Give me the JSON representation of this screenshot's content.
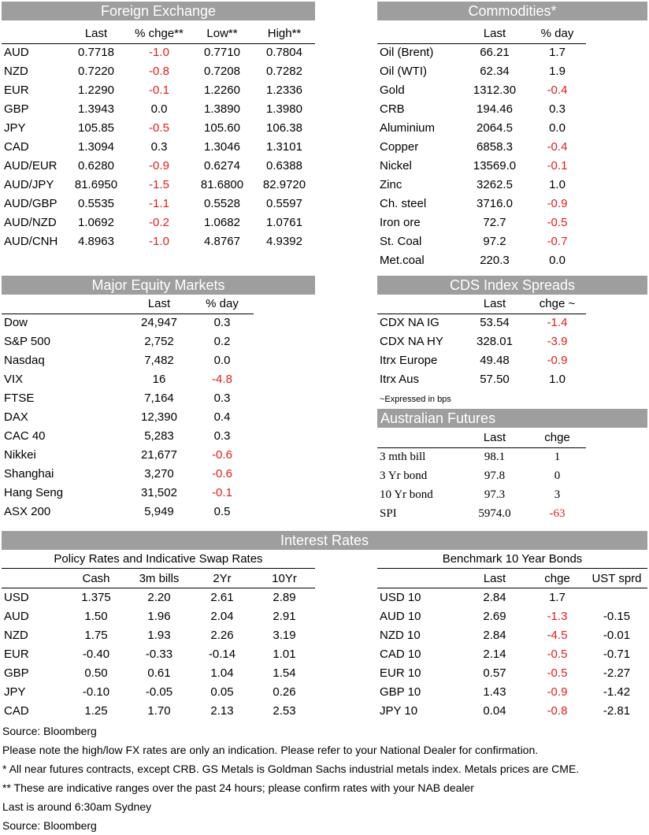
{
  "fx": {
    "title": "Foreign Exchange",
    "cols": [
      "",
      "Last",
      "% chge**",
      "Low**",
      "High**"
    ],
    "rows": [
      {
        "name": "AUD",
        "last": "0.7718",
        "chg": "-1.0",
        "low": "0.7710",
        "high": "0.7804"
      },
      {
        "name": "NZD",
        "last": "0.7220",
        "chg": "-0.8",
        "low": "0.7208",
        "high": "0.7282"
      },
      {
        "name": "EUR",
        "last": "1.2290",
        "chg": "-0.1",
        "low": "1.2260",
        "high": "1.2336"
      },
      {
        "name": "GBP",
        "last": "1.3943",
        "chg": "0.0",
        "low": "1.3890",
        "high": "1.3980"
      },
      {
        "name": "JPY",
        "last": "105.85",
        "chg": "-0.5",
        "low": "105.60",
        "high": "106.38"
      },
      {
        "name": "CAD",
        "last": "1.3094",
        "chg": "0.3",
        "low": "1.3046",
        "high": "1.3101"
      },
      {
        "name": "AUD/EUR",
        "last": "0.6280",
        "chg": "-0.9",
        "low": "0.6274",
        "high": "0.6388"
      },
      {
        "name": "AUD/JPY",
        "last": "81.6950",
        "chg": "-1.5",
        "low": "81.6800",
        "high": "82.9720"
      },
      {
        "name": "AUD/GBP",
        "last": "0.5535",
        "chg": "-1.1",
        "low": "0.5528",
        "high": "0.5597"
      },
      {
        "name": "AUD/NZD",
        "last": "1.0692",
        "chg": "-0.2",
        "low": "1.0682",
        "high": "1.0761"
      },
      {
        "name": "AUD/CNH",
        "last": "4.8963",
        "chg": "-1.0",
        "low": "4.8767",
        "high": "4.9392"
      }
    ]
  },
  "commodities": {
    "title": "Commodities*",
    "cols": [
      "",
      "Last",
      "% day"
    ],
    "rows": [
      {
        "name": "Oil (Brent)",
        "last": "66.21",
        "day": "1.7"
      },
      {
        "name": "Oil (WTI)",
        "last": "62.34",
        "day": "1.9"
      },
      {
        "name": "Gold",
        "last": "1312.30",
        "day": "-0.4"
      },
      {
        "name": "CRB",
        "last": "194.46",
        "day": "0.3"
      },
      {
        "name": "Aluminium",
        "last": "2064.5",
        "day": "0.0"
      },
      {
        "name": "Copper",
        "last": "6858.3",
        "day": "-0.4"
      },
      {
        "name": "Nickel",
        "last": "13569.0",
        "day": "-0.1"
      },
      {
        "name": "Zinc",
        "last": "3262.5",
        "day": "1.0"
      },
      {
        "name": "Ch. steel",
        "last": "3716.0",
        "day": "-0.9"
      },
      {
        "name": "Iron ore",
        "last": "72.7",
        "day": "-0.5"
      },
      {
        "name": "St. Coal",
        "last": "97.2",
        "day": "-0.7"
      },
      {
        "name": "Met.coal",
        "last": "220.3",
        "day": "0.0"
      }
    ]
  },
  "equity": {
    "title": "Major Equity Markets",
    "cols": [
      "",
      "Last",
      "% day"
    ],
    "rows": [
      {
        "name": "Dow",
        "last": "24,947",
        "day": "0.3"
      },
      {
        "name": "S&P 500",
        "last": "2,752",
        "day": "0.2"
      },
      {
        "name": "Nasdaq",
        "last": "7,482",
        "day": "0.0"
      },
      {
        "name": "VIX",
        "last": "16",
        "day": "-4.8"
      },
      {
        "name": "FTSE",
        "last": "7,164",
        "day": "0.3"
      },
      {
        "name": "DAX",
        "last": "12,390",
        "day": "0.4"
      },
      {
        "name": "CAC 40",
        "last": "5,283",
        "day": "0.3"
      },
      {
        "name": "Nikkei",
        "last": "21,677",
        "day": "-0.6"
      },
      {
        "name": "Shanghai",
        "last": "3,270",
        "day": "-0.6"
      },
      {
        "name": "Hang Seng",
        "last": "31,502",
        "day": "-0.1"
      },
      {
        "name": "ASX 200",
        "last": "5,949",
        "day": "0.5"
      }
    ]
  },
  "cds": {
    "title": "CDS Index Spreads",
    "cols": [
      "",
      "Last",
      "chge ~"
    ],
    "rows": [
      {
        "name": "CDX NA IG",
        "last": "53.54",
        "chg": "-1.4"
      },
      {
        "name": "CDX NA HY",
        "last": "328.01",
        "chg": "-3.9"
      },
      {
        "name": "Itrx Europe",
        "last": "49.48",
        "chg": "-0.9"
      },
      {
        "name": "Itrx Aus",
        "last": "57.50",
        "chg": "1.0"
      }
    ],
    "note": "~Expressed in bps"
  },
  "futures": {
    "title": "Australian Futures",
    "cols": [
      "",
      "Last",
      "chge"
    ],
    "rows": [
      {
        "name": "3 mth bill",
        "last": "98.1",
        "chg": "1"
      },
      {
        "name": "3 Yr bond",
        "last": "97.8",
        "chg": "0"
      },
      {
        "name": "10 Yr bond",
        "last": "97.3",
        "chg": "3"
      },
      {
        "name": "SPI",
        "last": "5974.0",
        "chg": "-63"
      }
    ]
  },
  "interest": {
    "title": "Interest Rates",
    "policy": {
      "subtitle": "Policy Rates and Indicative Swap Rates",
      "cols": [
        "",
        "Cash",
        "3m bills",
        "2Yr",
        "10Yr"
      ],
      "rows": [
        {
          "name": "USD",
          "cash": "1.375",
          "bills": "2.20",
          "y2": "2.61",
          "y10": "2.89"
        },
        {
          "name": "AUD",
          "cash": "1.50",
          "bills": "1.96",
          "y2": "2.04",
          "y10": "2.91"
        },
        {
          "name": "NZD",
          "cash": "1.75",
          "bills": "1.93",
          "y2": "2.26",
          "y10": "3.19"
        },
        {
          "name": "EUR",
          "cash": "-0.40",
          "bills": "-0.33",
          "y2": "-0.14",
          "y10": "1.01"
        },
        {
          "name": "GBP",
          "cash": "0.50",
          "bills": "0.61",
          "y2": "1.04",
          "y10": "1.54"
        },
        {
          "name": "JPY",
          "cash": "-0.10",
          "bills": "-0.05",
          "y2": "0.05",
          "y10": "0.26"
        },
        {
          "name": "CAD",
          "cash": "1.25",
          "bills": "1.70",
          "y2": "2.13",
          "y10": "2.53"
        }
      ]
    },
    "bonds": {
      "subtitle": "Benchmark 10 Year Bonds",
      "cols": [
        "",
        "Last",
        "chge",
        "UST sprd"
      ],
      "rows": [
        {
          "name": "USD 10",
          "last": "2.84",
          "chg": "1.7",
          "sprd": ""
        },
        {
          "name": "AUD 10",
          "last": "2.69",
          "chg": "-1.3",
          "sprd": "-0.15"
        },
        {
          "name": "NZD 10",
          "last": "2.84",
          "chg": "-4.5",
          "sprd": "-0.01"
        },
        {
          "name": "CAD 10",
          "last": "2.14",
          "chg": "-0.5",
          "sprd": "-0.71"
        },
        {
          "name": "EUR 10",
          "last": "0.57",
          "chg": "-0.5",
          "sprd": "-2.27"
        },
        {
          "name": "GBP 10",
          "last": "1.43",
          "chg": "-0.9",
          "sprd": "-1.42"
        },
        {
          "name": "JPY 10",
          "last": "0.04",
          "chg": "-0.8",
          "sprd": "-2.81"
        }
      ]
    }
  },
  "footnotes": [
    "Source: Bloomberg",
    "Please note the high/low FX rates are only an indication. Please refer to your National Dealer for confirmation.",
    "* All near futures contracts, except CRB.  GS Metals is Goldman Sachs industrial metals index.  Metals prices are CME.",
    "** These are indicative ranges over the past 24 hours; please confirm rates with your NAB dealer",
    "Last is around 6:30am Sydney",
    "Source: Bloomberg"
  ],
  "colors": {
    "header_bg": "#9e9e9e",
    "header_fg": "#ffffff",
    "negative": "#e31b1b"
  }
}
